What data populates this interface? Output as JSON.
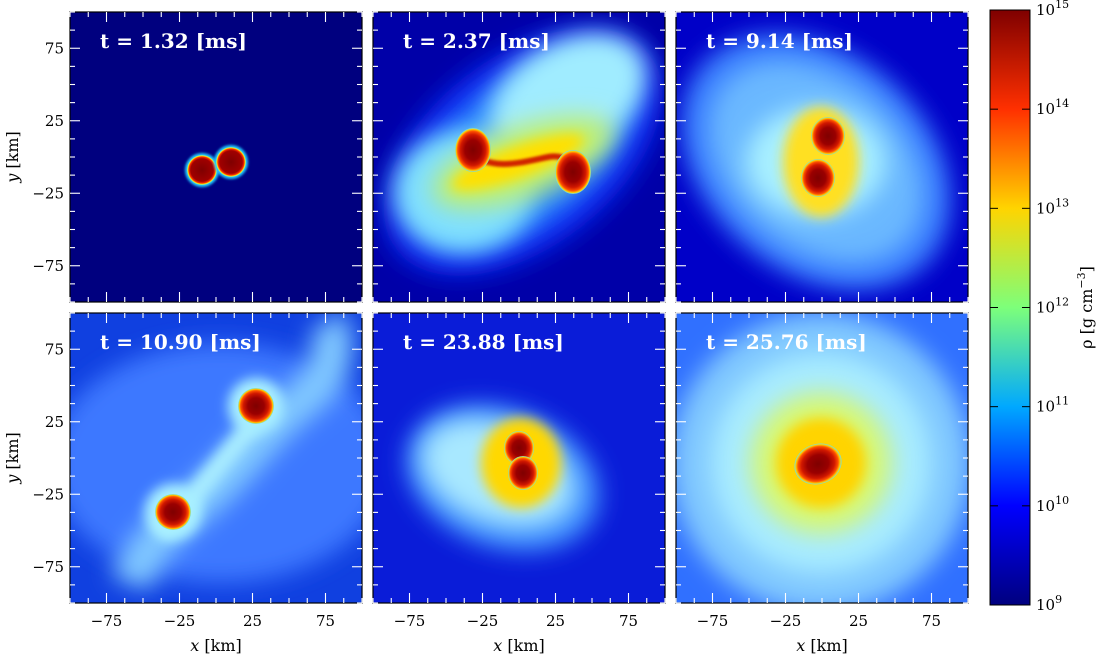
{
  "chart_data": {
    "type": "heatmap",
    "quantity": "rho",
    "unit": "g cm^-3",
    "colorbar": {
      "scale": "log",
      "range": [
        1000000000.0,
        1000000000000000.0
      ],
      "ticks": [
        {
          "base": "10",
          "exp": "9"
        },
        {
          "base": "10",
          "exp": "10"
        },
        {
          "base": "10",
          "exp": "11"
        },
        {
          "base": "10",
          "exp": "12"
        },
        {
          "base": "10",
          "exp": "13"
        },
        {
          "base": "10",
          "exp": "14"
        },
        {
          "base": "10",
          "exp": "15"
        }
      ],
      "label": "ρ [g cm",
      "label_exp": "−3",
      "label_end": "]",
      "colors": [
        "#00007f",
        "#0000ff",
        "#00a8ff",
        "#7dff7a",
        "#ffd400",
        "#ff3000",
        "#7f0000"
      ]
    },
    "x_axis": {
      "label_var": "x",
      "label_unit": " [km]",
      "range": [
        -100,
        100
      ],
      "ticks": [
        "−75",
        "−25",
        "25",
        "75"
      ],
      "tick_values": [
        -75,
        -25,
        25,
        75
      ]
    },
    "y_axis": {
      "label_var": "y",
      "label_unit": " [km]",
      "range": [
        -100,
        100
      ],
      "ticks": [
        "75",
        "25",
        "−25",
        "−75"
      ],
      "tick_values": [
        75,
        25,
        -25,
        -75
      ]
    },
    "panels": [
      {
        "label": "t = 1.32 [ms]"
      },
      {
        "label": "t = 2.37 [ms]"
      },
      {
        "label": "t = 9.14 [ms]"
      },
      {
        "label": "t = 10.90 [ms]"
      },
      {
        "label": "t = 23.88 [ms]"
      },
      {
        "label": "t = 25.76 [ms]"
      }
    ]
  }
}
